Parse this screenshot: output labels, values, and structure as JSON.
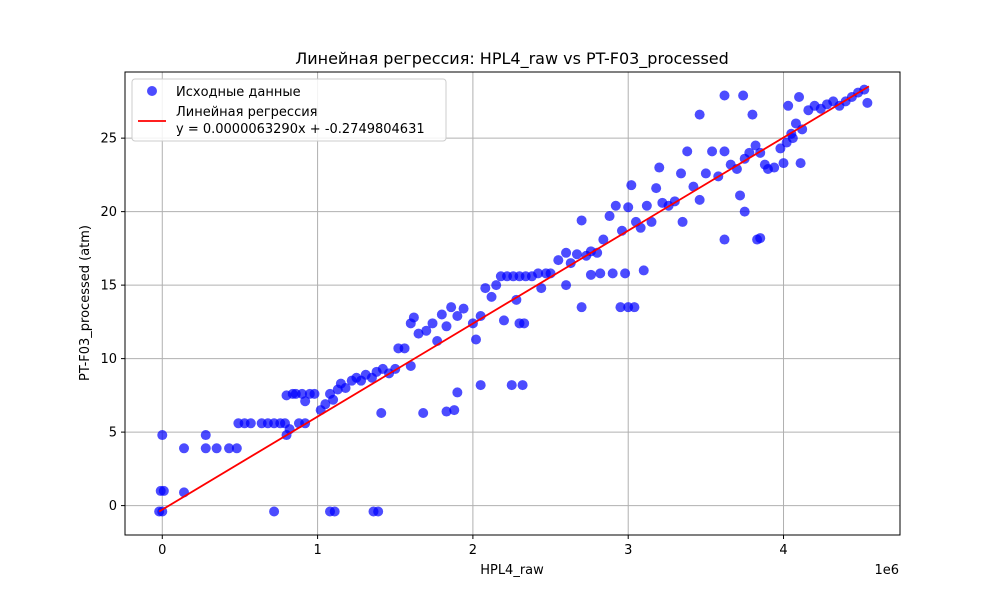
{
  "chart_data": {
    "type": "scatter",
    "title": "Линейная регрессия: HPL4_raw vs PT-F03_processed",
    "xlabel": "HPL4_raw",
    "ylabel": "PT-F03_processed (atm)",
    "x_offset_label": "1e6",
    "xlim": [
      -0.24,
      4.75
    ],
    "ylim": [
      -2.0,
      29.5
    ],
    "x_ticks": [
      0,
      1,
      2,
      3,
      4
    ],
    "y_ticks": [
      0,
      5,
      10,
      15,
      20,
      25
    ],
    "grid": true,
    "legend_position": "top-left",
    "colors": {
      "scatter": "#0000ff",
      "line": "#ff0000"
    },
    "series": [
      {
        "name": "Исходные данные",
        "type": "scatter",
        "points": [
          [
            -0.02,
            -0.4
          ],
          [
            0.0,
            -0.4
          ],
          [
            -0.01,
            1.0
          ],
          [
            0.01,
            1.0
          ],
          [
            0.0,
            4.8
          ],
          [
            0.14,
            0.9
          ],
          [
            0.14,
            3.9
          ],
          [
            0.28,
            3.9
          ],
          [
            0.28,
            4.8
          ],
          [
            0.35,
            3.9
          ],
          [
            0.43,
            3.9
          ],
          [
            0.48,
            3.9
          ],
          [
            0.49,
            5.6
          ],
          [
            0.53,
            5.6
          ],
          [
            0.57,
            5.6
          ],
          [
            0.64,
            5.6
          ],
          [
            0.68,
            5.6
          ],
          [
            0.72,
            5.6
          ],
          [
            0.76,
            5.6
          ],
          [
            0.79,
            5.6
          ],
          [
            0.8,
            4.8
          ],
          [
            0.82,
            5.2
          ],
          [
            0.8,
            7.5
          ],
          [
            0.84,
            7.6
          ],
          [
            0.86,
            7.6
          ],
          [
            0.9,
            7.6
          ],
          [
            0.92,
            7.1
          ],
          [
            0.95,
            7.6
          ],
          [
            0.98,
            7.6
          ],
          [
            0.88,
            5.6
          ],
          [
            0.92,
            5.6
          ],
          [
            0.72,
            -0.4
          ],
          [
            1.02,
            6.5
          ],
          [
            1.05,
            6.9
          ],
          [
            1.08,
            7.6
          ],
          [
            1.1,
            7.2
          ],
          [
            1.13,
            7.9
          ],
          [
            1.15,
            8.3
          ],
          [
            1.18,
            8.0
          ],
          [
            1.22,
            8.5
          ],
          [
            1.25,
            8.7
          ],
          [
            1.28,
            8.5
          ],
          [
            1.31,
            8.9
          ],
          [
            1.35,
            8.7
          ],
          [
            1.38,
            9.1
          ],
          [
            1.42,
            9.3
          ],
          [
            1.46,
            9.0
          ],
          [
            1.5,
            9.3
          ],
          [
            1.52,
            10.7
          ],
          [
            1.56,
            10.7
          ],
          [
            1.6,
            12.4
          ],
          [
            1.62,
            12.8
          ],
          [
            1.65,
            11.7
          ],
          [
            1.7,
            11.9
          ],
          [
            1.74,
            12.4
          ],
          [
            1.77,
            11.2
          ],
          [
            1.8,
            13.0
          ],
          [
            1.83,
            12.2
          ],
          [
            1.86,
            13.5
          ],
          [
            1.9,
            12.9
          ],
          [
            1.94,
            13.4
          ],
          [
            1.6,
            9.5
          ],
          [
            1.68,
            6.3
          ],
          [
            1.83,
            6.4
          ],
          [
            1.88,
            6.5
          ],
          [
            1.9,
            7.7
          ],
          [
            1.41,
            6.3
          ],
          [
            1.08,
            -0.4
          ],
          [
            1.11,
            -0.4
          ],
          [
            1.36,
            -0.4
          ],
          [
            1.39,
            -0.4
          ],
          [
            2.0,
            12.4
          ],
          [
            2.02,
            11.3
          ],
          [
            2.05,
            12.9
          ],
          [
            2.08,
            14.8
          ],
          [
            2.12,
            14.2
          ],
          [
            2.15,
            15.0
          ],
          [
            2.18,
            15.6
          ],
          [
            2.22,
            15.6
          ],
          [
            2.26,
            15.6
          ],
          [
            2.28,
            14.0
          ],
          [
            2.3,
            15.6
          ],
          [
            2.34,
            15.6
          ],
          [
            2.38,
            15.6
          ],
          [
            2.42,
            15.8
          ],
          [
            2.47,
            15.8
          ],
          [
            2.5,
            15.8
          ],
          [
            2.55,
            16.7
          ],
          [
            2.6,
            17.2
          ],
          [
            2.63,
            16.5
          ],
          [
            2.67,
            17.1
          ],
          [
            2.7,
            19.4
          ],
          [
            2.73,
            17.0
          ],
          [
            2.76,
            17.3
          ],
          [
            2.8,
            17.2
          ],
          [
            2.84,
            18.1
          ],
          [
            2.88,
            19.7
          ],
          [
            2.92,
            20.4
          ],
          [
            2.96,
            18.7
          ],
          [
            2.3,
            12.4
          ],
          [
            2.33,
            12.4
          ],
          [
            2.2,
            12.6
          ],
          [
            2.05,
            8.2
          ],
          [
            2.25,
            8.2
          ],
          [
            2.32,
            8.2
          ],
          [
            2.44,
            14.8
          ],
          [
            2.6,
            15.0
          ],
          [
            2.7,
            13.5
          ],
          [
            2.76,
            15.7
          ],
          [
            2.82,
            15.8
          ],
          [
            2.9,
            15.8
          ],
          [
            2.95,
            13.5
          ],
          [
            2.98,
            15.8
          ],
          [
            3.0,
            13.5
          ],
          [
            3.0,
            20.3
          ],
          [
            3.02,
            21.8
          ],
          [
            3.05,
            19.3
          ],
          [
            3.08,
            18.9
          ],
          [
            3.12,
            20.4
          ],
          [
            3.15,
            19.3
          ],
          [
            3.18,
            21.6
          ],
          [
            3.2,
            23.0
          ],
          [
            3.22,
            20.6
          ],
          [
            3.26,
            20.4
          ],
          [
            3.3,
            20.7
          ],
          [
            3.34,
            22.6
          ],
          [
            3.38,
            24.1
          ],
          [
            3.42,
            21.7
          ],
          [
            3.46,
            20.8
          ],
          [
            3.5,
            22.6
          ],
          [
            3.54,
            24.1
          ],
          [
            3.58,
            22.4
          ],
          [
            3.62,
            24.1
          ],
          [
            3.66,
            23.2
          ],
          [
            3.7,
            22.9
          ],
          [
            3.72,
            21.1
          ],
          [
            3.75,
            23.6
          ],
          [
            3.78,
            24.0
          ],
          [
            3.8,
            26.6
          ],
          [
            3.82,
            24.5
          ],
          [
            3.85,
            24.0
          ],
          [
            3.88,
            23.2
          ],
          [
            3.9,
            22.9
          ],
          [
            3.94,
            23.0
          ],
          [
            3.98,
            24.3
          ],
          [
            4.02,
            24.7
          ],
          [
            4.05,
            25.3
          ],
          [
            4.08,
            26.0
          ],
          [
            4.1,
            27.8
          ],
          [
            4.12,
            25.6
          ],
          [
            4.16,
            26.9
          ],
          [
            4.2,
            27.2
          ],
          [
            4.24,
            27.0
          ],
          [
            4.28,
            27.3
          ],
          [
            4.32,
            27.5
          ],
          [
            4.36,
            27.2
          ],
          [
            4.4,
            27.5
          ],
          [
            4.44,
            27.8
          ],
          [
            4.48,
            28.1
          ],
          [
            4.52,
            28.3
          ],
          [
            4.54,
            27.4
          ],
          [
            3.62,
            27.9
          ],
          [
            3.74,
            27.9
          ],
          [
            3.62,
            18.1
          ],
          [
            3.75,
            20.0
          ],
          [
            3.83,
            18.1
          ],
          [
            3.85,
            18.2
          ],
          [
            3.46,
            26.6
          ],
          [
            3.04,
            13.5
          ],
          [
            3.35,
            19.3
          ],
          [
            3.1,
            16.0
          ],
          [
            4.0,
            23.3
          ],
          [
            4.03,
            27.2
          ],
          [
            4.06,
            25.0
          ],
          [
            4.11,
            23.3
          ]
        ]
      },
      {
        "name": "Линейная регрессия\ny = 0.0000063290x + -0.2749804631",
        "type": "line",
        "slope": 6.329e-06,
        "intercept": -0.2749804631,
        "x_range": [
          -0.02,
          4.55
        ]
      }
    ],
    "legend": {
      "entries": [
        "Исходные данные",
        "Линейная регрессия",
        "y = 0.0000063290x + -0.2749804631"
      ]
    }
  }
}
